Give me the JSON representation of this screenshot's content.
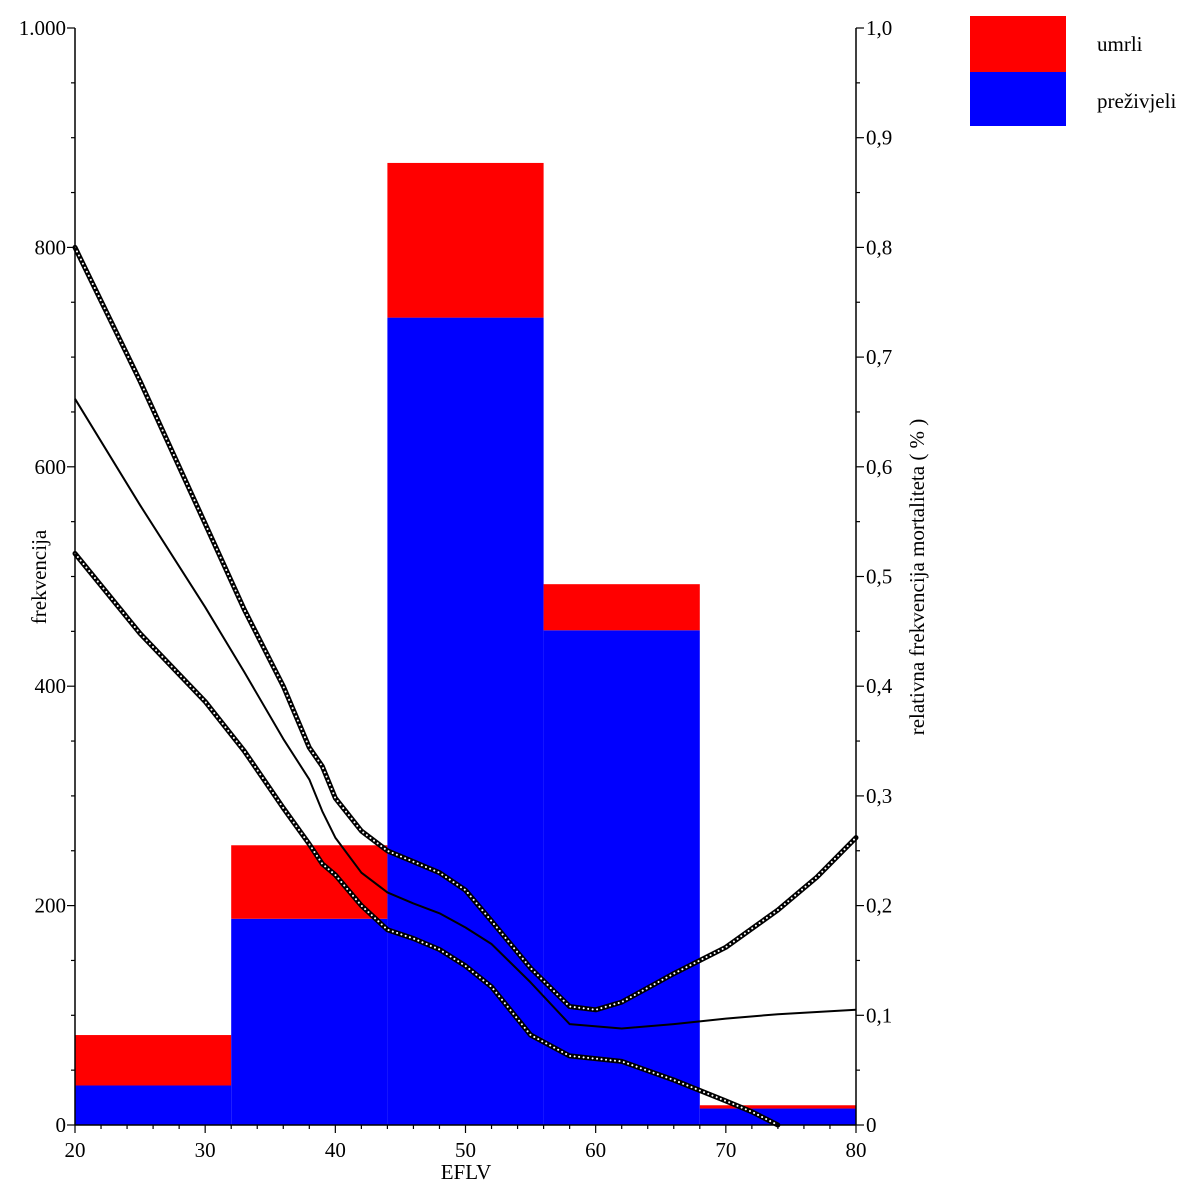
{
  "chart_data": {
    "type": "bar",
    "stacked": true,
    "x_axis": {
      "label": "EFLV",
      "min": 20,
      "max": 80,
      "ticks": [
        20,
        30,
        40,
        50,
        60,
        70,
        80
      ],
      "tick_labels": [
        "20",
        "30",
        "40",
        "50",
        "60",
        "70",
        "80"
      ],
      "minor_step": 2
    },
    "y_left": {
      "label": "frekvencija",
      "min": 0,
      "max": 1000,
      "ticks": [
        0,
        200,
        400,
        600,
        800,
        1000
      ],
      "tick_labels": [
        "0",
        "200",
        "400",
        "600",
        "800",
        "1.000"
      ],
      "minor_step": 50
    },
    "y_right": {
      "label": "relativna frekvencija mortaliteta ( % )",
      "min": 0,
      "max": 1,
      "ticks": [
        0,
        0.1,
        0.2,
        0.3,
        0.4,
        0.5,
        0.6,
        0.7,
        0.8,
        0.9,
        1.0
      ],
      "tick_labels": [
        "0",
        "0,1",
        "0,2",
        "0,3",
        "0,4",
        "0,5",
        "0,6",
        "0,7",
        "0,8",
        "0,9",
        "1,0"
      ],
      "minor_step": 0.05
    },
    "bins": [
      {
        "x0": 20,
        "x1": 32,
        "prezivjeli": 36,
        "umrli": 46
      },
      {
        "x0": 32,
        "x1": 44,
        "prezivjeli": 188,
        "umrli": 67
      },
      {
        "x0": 44,
        "x1": 56,
        "prezivjeli": 736,
        "umrli": 141
      },
      {
        "x0": 56,
        "x1": 68,
        "prezivjeli": 451,
        "umrli": 42
      },
      {
        "x0": 68,
        "x1": 80,
        "prezivjeli": 15,
        "umrli": 3
      }
    ],
    "series": [
      {
        "name": "umrli",
        "key": "umrli",
        "color": "#ff0000"
      },
      {
        "name": "preživjeli",
        "key": "prezivjeli",
        "color": "#0000ff"
      }
    ],
    "lines": [
      {
        "style": "solid",
        "axis": "right",
        "x": [
          20,
          25,
          30,
          33,
          36,
          38,
          39,
          40,
          42,
          44,
          46,
          48,
          50,
          52,
          55,
          58,
          62,
          66,
          70,
          74,
          77,
          80
        ],
        "y": [
          0.662,
          0.565,
          0.472,
          0.413,
          0.352,
          0.315,
          0.286,
          0.262,
          0.23,
          0.212,
          0.202,
          0.193,
          0.18,
          0.165,
          0.13,
          0.092,
          0.088,
          0.092,
          0.097,
          0.101,
          0.103,
          0.105
        ]
      },
      {
        "style": "dotted",
        "axis": "right",
        "x": [
          20,
          25,
          30,
          33,
          36,
          38,
          39,
          40,
          42,
          44,
          46,
          48,
          50,
          52,
          55,
          58,
          60,
          62,
          64,
          66,
          70,
          74,
          77,
          80
        ],
        "y": [
          0.8,
          0.678,
          0.548,
          0.47,
          0.4,
          0.344,
          0.327,
          0.298,
          0.268,
          0.25,
          0.24,
          0.23,
          0.214,
          0.186,
          0.143,
          0.108,
          0.105,
          0.112,
          0.125,
          0.138,
          0.162,
          0.196,
          0.226,
          0.262
        ]
      },
      {
        "style": "dotted",
        "axis": "right",
        "x": [
          20,
          25,
          30,
          33,
          36,
          38,
          39,
          40,
          42,
          44,
          46,
          48,
          50,
          52,
          55,
          58,
          62,
          66,
          70,
          72,
          74
        ],
        "y": [
          0.521,
          0.448,
          0.386,
          0.341,
          0.289,
          0.256,
          0.238,
          0.228,
          0.2,
          0.178,
          0.17,
          0.16,
          0.145,
          0.126,
          0.082,
          0.063,
          0.058,
          0.041,
          0.022,
          0.012,
          0.0
        ]
      }
    ],
    "legend": {
      "placement": "top-right outside",
      "entries": [
        "umrli",
        "preživjeli"
      ]
    },
    "grid": false
  }
}
